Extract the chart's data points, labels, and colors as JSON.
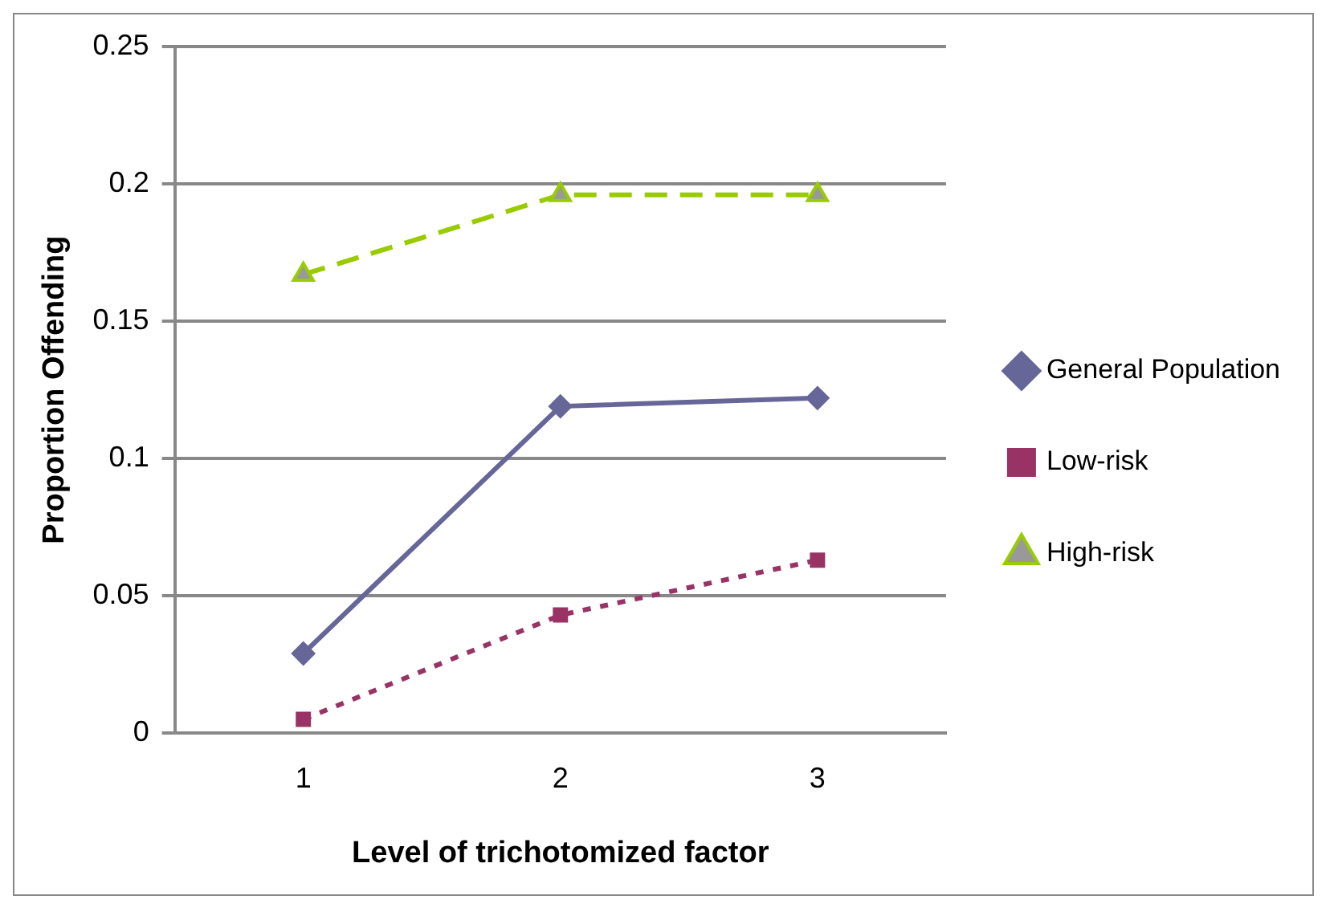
{
  "chart_data": {
    "type": "line",
    "xlabel": "Level of trichotomized factor",
    "ylabel": "Proportion Offending",
    "categories": [
      "1",
      "2",
      "3"
    ],
    "series": [
      {
        "name": "General Population",
        "color": "#666699",
        "marker": "diamond",
        "line_style": "solid",
        "values": [
          0.029,
          0.119,
          0.122
        ]
      },
      {
        "name": "Low-risk",
        "color": "#993366",
        "marker": "square",
        "line_style": "dotted",
        "values": [
          0.005,
          0.043,
          0.063
        ]
      },
      {
        "name": "High-risk",
        "color": "#99cc00",
        "marker": "triangle",
        "line_style": "dashed",
        "values": [
          0.167,
          0.196,
          0.196
        ]
      }
    ],
    "ylim": [
      0,
      0.25
    ],
    "yticks": [
      0,
      0.05,
      0.1,
      0.15,
      0.2,
      0.25
    ],
    "grid": "y",
    "legend": "right"
  }
}
